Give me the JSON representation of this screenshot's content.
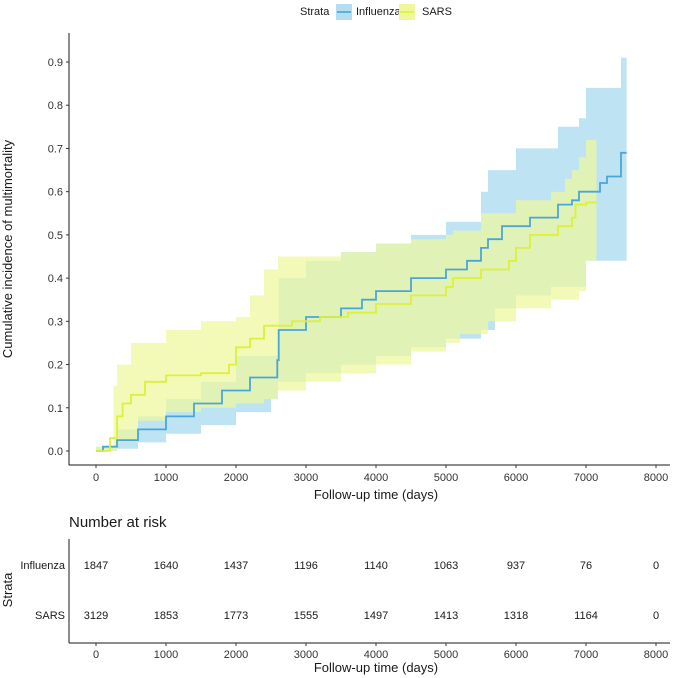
{
  "legend": {
    "title": "Strata"
  },
  "colors": {
    "influenza_line": "#4aa6d8",
    "influenza_fill": "#b3def1",
    "sars_line": "#ddf03a",
    "sars_fill": "#eef89a"
  },
  "chart_data": {
    "type": "line",
    "subtype": "step cumulative incidence with confidence bands",
    "xlabel": "Follow-up time (days)",
    "ylabel": "Cumulative incidence of multimortality",
    "xlim": [
      0,
      8000
    ],
    "ylim": [
      0,
      0.9
    ],
    "xticks": [
      "0",
      "1000",
      "2000",
      "3000",
      "4000",
      "5000",
      "6000",
      "7000",
      "8000"
    ],
    "yticks": [
      "0.0",
      "0.1",
      "0.2",
      "0.3",
      "0.4",
      "0.5",
      "0.6",
      "0.7",
      "0.8",
      "0.9"
    ],
    "grid": false,
    "legend_position": "top",
    "series": [
      {
        "name": "Influenza",
        "points": [
          [
            0,
            0
          ],
          [
            100,
            0.01
          ],
          [
            300,
            0.025
          ],
          [
            600,
            0.05
          ],
          [
            1000,
            0.08
          ],
          [
            1400,
            0.11
          ],
          [
            1800,
            0.14
          ],
          [
            2200,
            0.17
          ],
          [
            2590,
            0.21
          ],
          [
            2610,
            0.28
          ],
          [
            3000,
            0.31
          ],
          [
            3500,
            0.33
          ],
          [
            3800,
            0.35
          ],
          [
            4000,
            0.37
          ],
          [
            4500,
            0.4
          ],
          [
            5000,
            0.42
          ],
          [
            5300,
            0.44
          ],
          [
            5500,
            0.47
          ],
          [
            5600,
            0.49
          ],
          [
            5800,
            0.52
          ],
          [
            6200,
            0.54
          ],
          [
            6600,
            0.57
          ],
          [
            6800,
            0.58
          ],
          [
            6900,
            0.6
          ],
          [
            7200,
            0.62
          ],
          [
            7300,
            0.635
          ],
          [
            7500,
            0.69
          ],
          [
            7580,
            0.69
          ]
        ],
        "lower": [
          [
            0,
            0
          ],
          [
            300,
            0.005
          ],
          [
            600,
            0.02
          ],
          [
            1000,
            0.04
          ],
          [
            1500,
            0.06
          ],
          [
            2000,
            0.09
          ],
          [
            2500,
            0.12
          ],
          [
            2600,
            0.16
          ],
          [
            3000,
            0.18
          ],
          [
            3500,
            0.2
          ],
          [
            4000,
            0.22
          ],
          [
            4500,
            0.24
          ],
          [
            5000,
            0.26
          ],
          [
            5500,
            0.28
          ],
          [
            5700,
            0.33
          ],
          [
            6000,
            0.36
          ],
          [
            6500,
            0.38
          ],
          [
            6900,
            0.38
          ],
          [
            7000,
            0.44
          ],
          [
            7580,
            0.47
          ]
        ],
        "upper": [
          [
            0,
            0.01
          ],
          [
            300,
            0.05
          ],
          [
            600,
            0.08
          ],
          [
            1000,
            0.12
          ],
          [
            1500,
            0.16
          ],
          [
            2000,
            0.22
          ],
          [
            2600,
            0.28
          ],
          [
            2610,
            0.4
          ],
          [
            3000,
            0.44
          ],
          [
            3500,
            0.46
          ],
          [
            4000,
            0.48
          ],
          [
            4500,
            0.5
          ],
          [
            5000,
            0.53
          ],
          [
            5500,
            0.6
          ],
          [
            5600,
            0.65
          ],
          [
            6000,
            0.7
          ],
          [
            6600,
            0.75
          ],
          [
            6900,
            0.77
          ],
          [
            7000,
            0.84
          ],
          [
            7500,
            0.91
          ],
          [
            7580,
            0.91
          ]
        ]
      },
      {
        "name": "SARS",
        "points": [
          [
            0,
            0
          ],
          [
            200,
            0.03
          ],
          [
            300,
            0.08
          ],
          [
            380,
            0.11
          ],
          [
            500,
            0.13
          ],
          [
            700,
            0.16
          ],
          [
            1000,
            0.175
          ],
          [
            1500,
            0.18
          ],
          [
            1900,
            0.2
          ],
          [
            2000,
            0.24
          ],
          [
            2200,
            0.26
          ],
          [
            2400,
            0.29
          ],
          [
            2800,
            0.3
          ],
          [
            3200,
            0.31
          ],
          [
            3600,
            0.32
          ],
          [
            4000,
            0.34
          ],
          [
            4500,
            0.36
          ],
          [
            5000,
            0.38
          ],
          [
            5100,
            0.4
          ],
          [
            5500,
            0.42
          ],
          [
            5900,
            0.44
          ],
          [
            6000,
            0.47
          ],
          [
            6200,
            0.5
          ],
          [
            6600,
            0.52
          ],
          [
            6800,
            0.54
          ],
          [
            6850,
            0.57
          ],
          [
            7000,
            0.575
          ],
          [
            7150,
            0.575
          ]
        ],
        "lower": [
          [
            0,
            0
          ],
          [
            300,
            0.02
          ],
          [
            600,
            0.07
          ],
          [
            1000,
            0.09
          ],
          [
            1500,
            0.1
          ],
          [
            2000,
            0.11
          ],
          [
            2400,
            0.12
          ],
          [
            2600,
            0.14
          ],
          [
            3000,
            0.16
          ],
          [
            3500,
            0.18
          ],
          [
            4000,
            0.2
          ],
          [
            4500,
            0.23
          ],
          [
            5000,
            0.25
          ],
          [
            5200,
            0.27
          ],
          [
            5600,
            0.3
          ],
          [
            6000,
            0.33
          ],
          [
            6500,
            0.35
          ],
          [
            6900,
            0.37
          ],
          [
            7000,
            0.44
          ],
          [
            7150,
            0.44
          ]
        ],
        "upper": [
          [
            0,
            0.01
          ],
          [
            250,
            0.15
          ],
          [
            300,
            0.2
          ],
          [
            500,
            0.25
          ],
          [
            1000,
            0.28
          ],
          [
            1500,
            0.3
          ],
          [
            2000,
            0.31
          ],
          [
            2200,
            0.36
          ],
          [
            2400,
            0.42
          ],
          [
            2600,
            0.45
          ],
          [
            3000,
            0.45
          ],
          [
            3500,
            0.46
          ],
          [
            4000,
            0.48
          ],
          [
            4500,
            0.49
          ],
          [
            5000,
            0.5
          ],
          [
            5100,
            0.51
          ],
          [
            5500,
            0.55
          ],
          [
            6000,
            0.58
          ],
          [
            6500,
            0.6
          ],
          [
            6700,
            0.63
          ],
          [
            6800,
            0.65
          ],
          [
            6900,
            0.68
          ],
          [
            7000,
            0.72
          ],
          [
            7150,
            0.73
          ]
        ]
      }
    ]
  },
  "risk_table": {
    "title": "Number at risk",
    "strata_label": "Strata",
    "xlabel": "Follow-up time (days)",
    "times": [
      0,
      1000,
      2000,
      3000,
      4000,
      5000,
      6000,
      7000,
      8000
    ],
    "xticks": [
      "0",
      "1000",
      "2000",
      "3000",
      "4000",
      "5000",
      "6000",
      "7000",
      "8000"
    ],
    "rows": [
      {
        "name": "Influenza",
        "counts": [
          "1847",
          "1640",
          "1437",
          "1196",
          "1140",
          "1063",
          "937",
          "76",
          "0"
        ]
      },
      {
        "name": "SARS",
        "counts": [
          "3129",
          "1853",
          "1773",
          "1555",
          "1497",
          "1413",
          "1318",
          "1164",
          "0"
        ]
      }
    ]
  }
}
